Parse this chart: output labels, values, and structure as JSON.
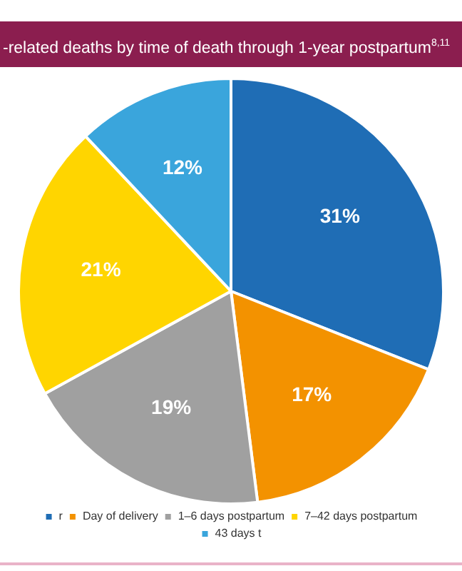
{
  "chart_data": {
    "type": "pie",
    "title": "-related deaths by time of death through 1-year postpartum$^{8,11}$",
    "categories": [
      "r",
      "Day of delivery",
      "1–6 days postpartum",
      "7–42 days postpartum",
      "43 days t"
    ],
    "values": [
      31,
      17,
      19,
      21,
      12
    ],
    "colors": [
      "#1f6db5",
      "#f39200",
      "#a0a0a0",
      "#ffd500",
      "#3aa5dc"
    ],
    "value_labels": [
      "31%",
      "17%",
      "19%",
      "21%",
      "12%"
    ],
    "legend": "bottom"
  }
}
